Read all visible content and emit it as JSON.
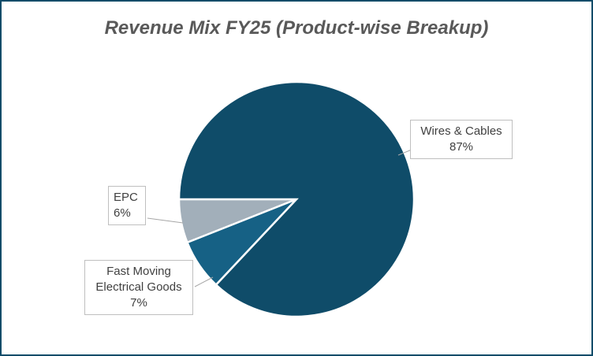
{
  "chart_data": {
    "type": "pie",
    "title": "Revenue Mix FY25 (Product-wise Breakup)",
    "categories": [
      "Wires & Cables",
      "Fast Moving Electrical Goods",
      "EPC"
    ],
    "values": [
      87,
      7,
      6
    ],
    "value_labels": [
      "87%",
      "7%",
      "6%"
    ],
    "colors": [
      "#0f4c69",
      "#166185",
      "#a2afba"
    ],
    "start_angle": 270
  }
}
